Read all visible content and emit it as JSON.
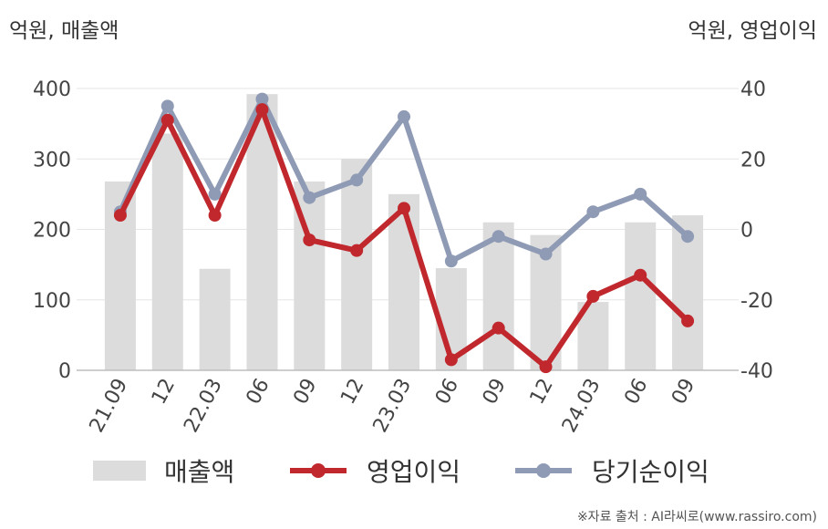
{
  "units": {
    "left": "억원, 매출액",
    "right": "억원, 영업이익"
  },
  "legend": {
    "revenue": "매출액",
    "operating_profit": "영업이익",
    "net_income": "당기순이익"
  },
  "source": "※자료 출처 : AI라씨로(www.rassiro.com)",
  "colors": {
    "revenue": "#dcdcdc",
    "operating_profit": "#c0282d",
    "net_income": "#8f9bb5"
  },
  "chart_data": {
    "type": "bar",
    "categories": [
      "21.09",
      "12",
      "22.03",
      "06",
      "09",
      "12",
      "23.03",
      "06",
      "09",
      "12",
      "24.03",
      "06",
      "09"
    ],
    "left_axis": {
      "ylim": [
        0,
        400
      ],
      "ticks": [
        0,
        100,
        200,
        300,
        400
      ]
    },
    "right_axis": {
      "ylim": [
        -40,
        40
      ],
      "ticks": [
        -40,
        -20,
        0,
        20,
        40
      ]
    },
    "series": [
      {
        "name": "매출액",
        "type": "bar",
        "axis": "left",
        "values": [
          268,
          336,
          144,
          392,
          268,
          300,
          250,
          145,
          210,
          192,
          97,
          210,
          220
        ]
      },
      {
        "name": "영업이익",
        "type": "line",
        "axis": "right",
        "values": [
          4,
          31,
          4,
          34,
          -3,
          -6,
          6,
          -37,
          -28,
          -39,
          -19,
          -13,
          -26
        ]
      },
      {
        "name": "당기순이익",
        "type": "line",
        "axis": "right",
        "values": [
          5,
          35,
          10,
          37,
          9,
          14,
          32,
          -9,
          -2,
          -7,
          5,
          10,
          -2
        ]
      }
    ],
    "grid": true,
    "legend_position": "bottom"
  }
}
